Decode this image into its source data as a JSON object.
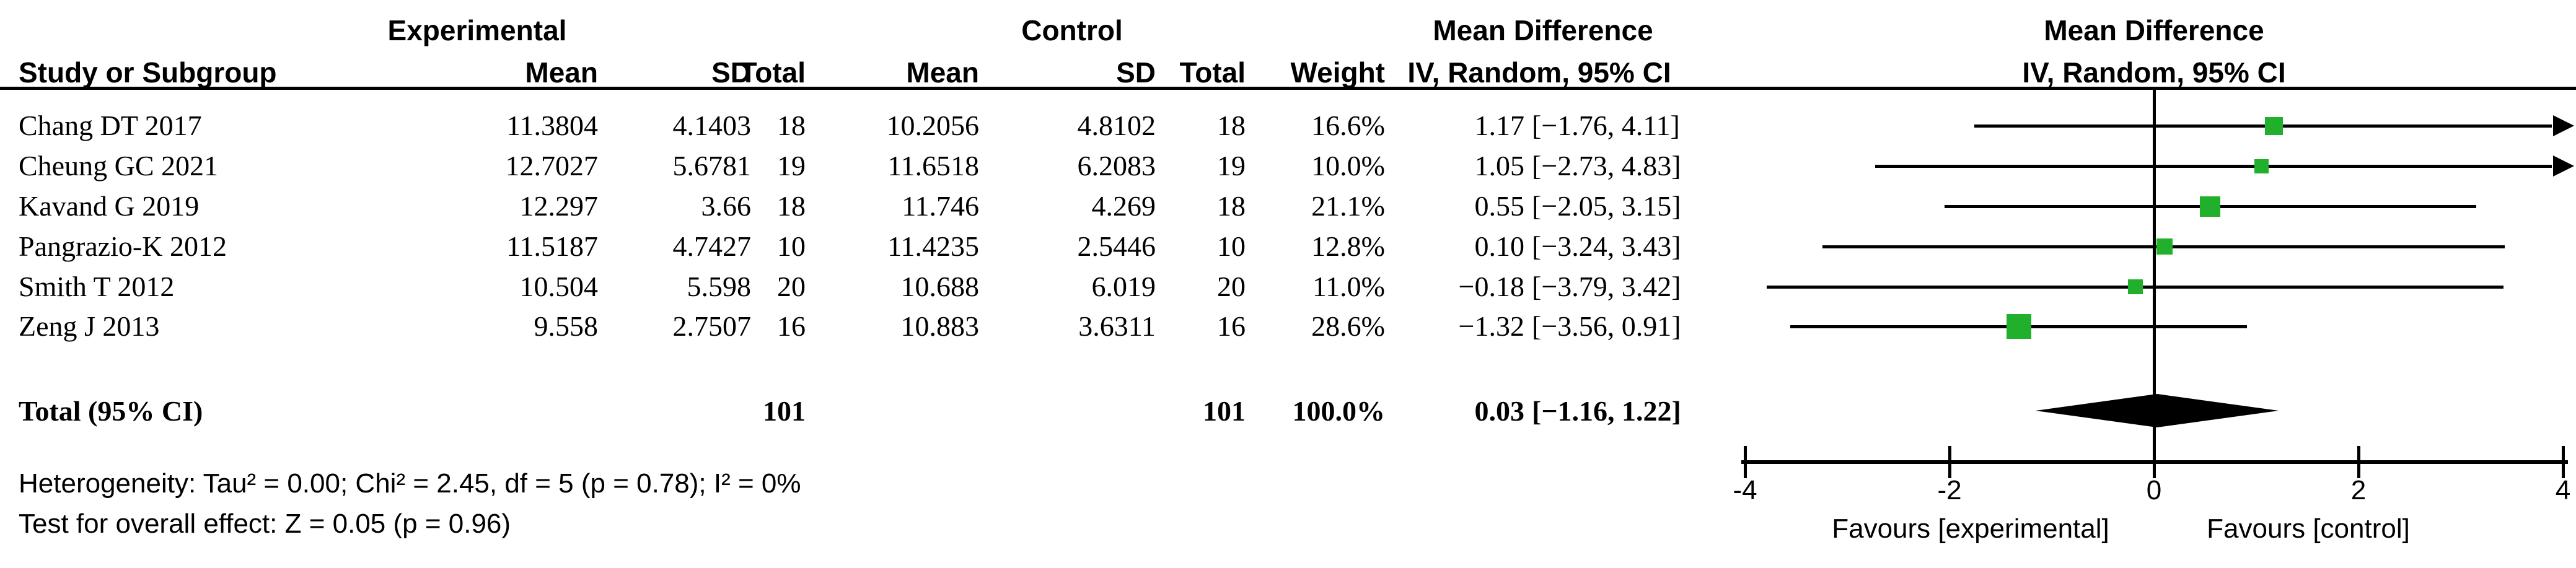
{
  "groups": {
    "experimental": "Experimental",
    "control": "Control",
    "effect": "Mean Difference"
  },
  "columns": {
    "study": "Study or Subgroup",
    "mean": "Mean",
    "sd": "SD",
    "total": "Total",
    "weight": "Weight",
    "effect": "IV, Random, 95% CI"
  },
  "stats": {
    "heterogeneity": "Heterogeneity: Tau² = 0.00; Chi² = 2.45, df = 5 (p = 0.78); I² = 0%",
    "overall": "Test for overall effect: Z = 0.05 (p = 0.96)"
  },
  "chart_data": {
    "type": "scatter",
    "subtype": "forest-plot",
    "effect_measure": "Mean Difference, IV, Random, 95% CI",
    "xlim": [
      -4,
      4
    ],
    "ticks": [
      -4,
      -2,
      0,
      2,
      4
    ],
    "zero_line": 0,
    "grid": false,
    "marker_color": "#21b02b",
    "studies": [
      {
        "name": "Chang DT 2017",
        "mean_e": "11.3804",
        "sd_e": "4.1403",
        "n_e": "18",
        "mean_c": "10.2056",
        "sd_c": "4.8102",
        "n_c": "18",
        "weight": "16.6%",
        "w": 16.6,
        "md": 1.17,
        "lo": -1.76,
        "hi": 4.11,
        "est": "1.17",
        "bracket": "[−1.76, 4.11]"
      },
      {
        "name": "Cheung GC 2021",
        "mean_e": "12.7027",
        "sd_e": "5.6781",
        "n_e": "19",
        "mean_c": "11.6518",
        "sd_c": "6.2083",
        "n_c": "19",
        "weight": "10.0%",
        "w": 10.0,
        "md": 1.05,
        "lo": -2.73,
        "hi": 4.83,
        "est": "1.05",
        "bracket": "[−2.73, 4.83]"
      },
      {
        "name": "Kavand G 2019",
        "mean_e": "12.297",
        "sd_e": "3.66",
        "n_e": "18",
        "mean_c": "11.746",
        "sd_c": "4.269",
        "n_c": "18",
        "weight": "21.1%",
        "w": 21.1,
        "md": 0.55,
        "lo": -2.05,
        "hi": 3.15,
        "est": "0.55",
        "bracket": "[−2.05, 3.15]"
      },
      {
        "name": "Pangrazio-K 2012",
        "mean_e": "11.5187",
        "sd_e": "4.7427",
        "n_e": "10",
        "mean_c": "11.4235",
        "sd_c": "2.5446",
        "n_c": "10",
        "weight": "12.8%",
        "w": 12.8,
        "md": 0.1,
        "lo": -3.24,
        "hi": 3.43,
        "est": "0.10",
        "bracket": "[−3.24, 3.43]"
      },
      {
        "name": "Smith T 2012",
        "mean_e": "10.504",
        "sd_e": "5.598",
        "n_e": "20",
        "mean_c": "10.688",
        "sd_c": "6.019",
        "n_c": "20",
        "weight": "11.0%",
        "w": 11.0,
        "md": -0.18,
        "lo": -3.79,
        "hi": 3.42,
        "est": "−0.18",
        "bracket": "[−3.79, 3.42]"
      },
      {
        "name": "Zeng J 2013",
        "mean_e": "9.558",
        "sd_e": "2.7507",
        "n_e": "16",
        "mean_c": "10.883",
        "sd_c": "3.6311",
        "n_c": "16",
        "weight": "28.6%",
        "w": 28.6,
        "md": -1.32,
        "lo": -3.56,
        "hi": 0.91,
        "est": "−1.32",
        "bracket": "[−3.56, 0.91]"
      }
    ],
    "total": {
      "label": "Total (95% CI)",
      "n_e": "101",
      "n_c": "101",
      "weight": "100.0%",
      "md": 0.03,
      "lo": -1.16,
      "hi": 1.22,
      "est": "0.03",
      "bracket": "[−1.16, 1.22]"
    },
    "favours_left": "Favours [experimental]",
    "favours_right": "Favours [control]"
  }
}
